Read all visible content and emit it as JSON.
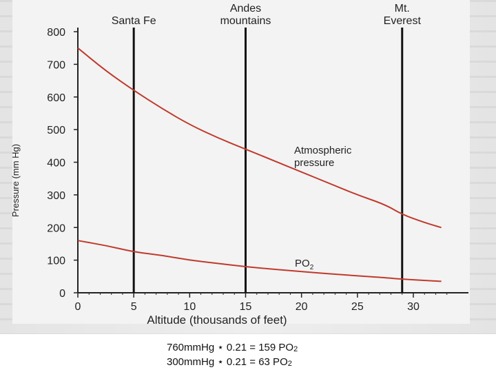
{
  "chart_data": {
    "type": "line",
    "title": "",
    "xlabel": "Altitude (thousands of feet)",
    "ylabel": "Pressure (mm Hg)",
    "xlim": [
      0,
      33
    ],
    "ylim": [
      0,
      800
    ],
    "xticks": [
      0,
      5,
      10,
      15,
      20,
      25,
      30
    ],
    "yticks": [
      0,
      100,
      200,
      300,
      400,
      500,
      600,
      700,
      800
    ],
    "grid": false,
    "series": [
      {
        "name": "Atmospheric pressure",
        "color": "#c0392b",
        "x": [
          0,
          2.5,
          5,
          7.5,
          10,
          12.5,
          15,
          17.5,
          20,
          22.5,
          25,
          27.5,
          29,
          31,
          32.5
        ],
        "y": [
          750,
          680,
          620,
          565,
          515,
          475,
          440,
          405,
          370,
          335,
          300,
          270,
          240,
          215,
          200
        ]
      },
      {
        "name": "PO2",
        "color": "#c0392b",
        "x": [
          0,
          2.5,
          5,
          7.5,
          10,
          12.5,
          15,
          17.5,
          20,
          22.5,
          25,
          27.5,
          29,
          31,
          32.5
        ],
        "y": [
          160,
          145,
          125,
          115,
          100,
          90,
          80,
          72,
          65,
          58,
          52,
          46,
          42,
          38,
          35
        ]
      }
    ],
    "vlines": [
      {
        "x": 5,
        "label": "Santa Fe"
      },
      {
        "x": 15,
        "label": "Andes mountains"
      },
      {
        "x": 29,
        "label": "Mt. Everest"
      }
    ],
    "annotations": {
      "atm_label_line1": "Atmospheric",
      "atm_label_line2": "pressure",
      "po2_label": "PO",
      "po2_sub": "2"
    }
  },
  "footer": {
    "line1_main": "760mmHg ⋆ 0.21 = 159 PO",
    "line1_sub": "2",
    "line2_main": "300mmHg ⋆ 0.21 = 63 PO",
    "line2_sub": "2"
  }
}
